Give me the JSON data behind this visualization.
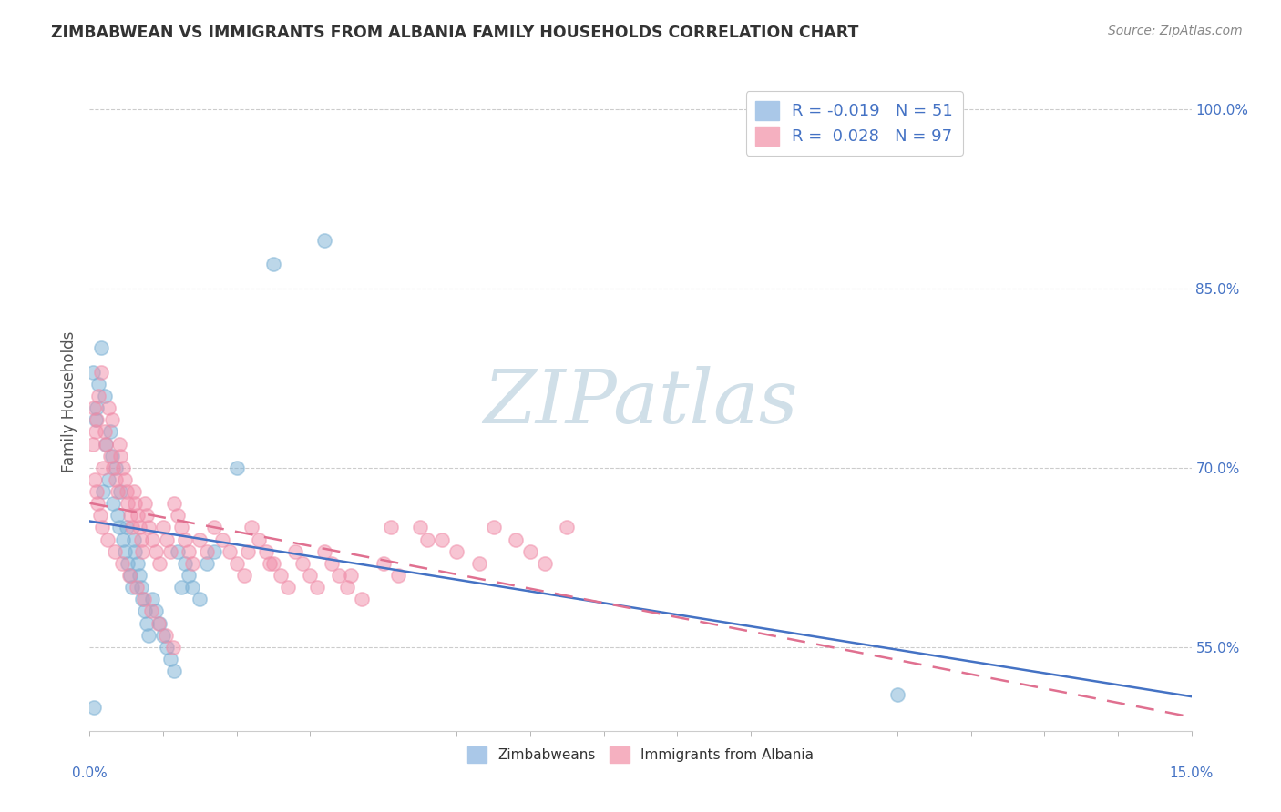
{
  "title": "ZIMBABWEAN VS IMMIGRANTS FROM ALBANIA FAMILY HOUSEHOLDS CORRELATION CHART",
  "source": "Source: ZipAtlas.com",
  "ylabel": "Family Households",
  "xlim": [
    0.0,
    15.0
  ],
  "ylim": [
    48.0,
    103.0
  ],
  "yticks": [
    55.0,
    70.0,
    85.0,
    100.0
  ],
  "series1_color": "#7ab0d4",
  "series1_edge": "#7ab0d4",
  "series2_color": "#f08ca8",
  "series2_edge": "#f08ca8",
  "trendline1_color": "#4472c4",
  "trendline2_color": "#e07090",
  "watermark_color": "#d0dfe8",
  "background_color": "#ffffff",
  "grid_color": "#cccccc",
  "zimbabwe_x": [
    0.05,
    0.08,
    0.1,
    0.12,
    0.15,
    0.18,
    0.2,
    0.22,
    0.25,
    0.28,
    0.3,
    0.32,
    0.35,
    0.38,
    0.4,
    0.42,
    0.45,
    0.48,
    0.5,
    0.52,
    0.55,
    0.58,
    0.6,
    0.62,
    0.65,
    0.68,
    0.7,
    0.72,
    0.75,
    0.78,
    0.8,
    0.85,
    0.9,
    0.95,
    1.0,
    1.05,
    1.1,
    1.15,
    1.2,
    1.25,
    1.3,
    1.35,
    1.4,
    1.5,
    1.6,
    1.7,
    2.0,
    2.5,
    3.2,
    11.0,
    0.06
  ],
  "zimbabwe_y": [
    78.0,
    74.0,
    75.0,
    77.0,
    80.0,
    68.0,
    76.0,
    72.0,
    69.0,
    73.0,
    71.0,
    67.0,
    70.0,
    66.0,
    65.0,
    68.0,
    64.0,
    63.0,
    65.0,
    62.0,
    61.0,
    60.0,
    64.0,
    63.0,
    62.0,
    61.0,
    60.0,
    59.0,
    58.0,
    57.0,
    56.0,
    59.0,
    58.0,
    57.0,
    56.0,
    55.0,
    54.0,
    53.0,
    63.0,
    60.0,
    62.0,
    61.0,
    60.0,
    59.0,
    62.0,
    63.0,
    70.0,
    87.0,
    89.0,
    51.0,
    50.0
  ],
  "albania_x": [
    0.04,
    0.06,
    0.08,
    0.1,
    0.12,
    0.15,
    0.18,
    0.2,
    0.22,
    0.25,
    0.28,
    0.3,
    0.32,
    0.35,
    0.38,
    0.4,
    0.42,
    0.45,
    0.48,
    0.5,
    0.52,
    0.55,
    0.58,
    0.6,
    0.62,
    0.65,
    0.68,
    0.7,
    0.72,
    0.75,
    0.78,
    0.8,
    0.85,
    0.9,
    0.95,
    1.0,
    1.05,
    1.1,
    1.15,
    1.2,
    1.25,
    1.3,
    1.35,
    1.4,
    1.5,
    1.6,
    1.7,
    1.8,
    1.9,
    2.0,
    2.1,
    2.2,
    2.3,
    2.4,
    2.5,
    2.6,
    2.7,
    2.8,
    2.9,
    3.0,
    3.1,
    3.2,
    3.3,
    3.4,
    3.5,
    3.7,
    4.0,
    4.2,
    4.5,
    4.8,
    5.0,
    5.3,
    5.5,
    5.8,
    6.0,
    6.2,
    6.5,
    0.07,
    0.09,
    0.11,
    0.14,
    0.17,
    0.24,
    0.34,
    0.44,
    0.54,
    0.64,
    0.74,
    0.84,
    0.94,
    1.04,
    1.14,
    2.15,
    2.45,
    3.55,
    4.1,
    4.6
  ],
  "albania_y": [
    72.0,
    75.0,
    73.0,
    74.0,
    76.0,
    78.0,
    70.0,
    73.0,
    72.0,
    75.0,
    71.0,
    74.0,
    70.0,
    69.0,
    68.0,
    72.0,
    71.0,
    70.0,
    69.0,
    68.0,
    67.0,
    66.0,
    65.0,
    68.0,
    67.0,
    66.0,
    65.0,
    64.0,
    63.0,
    67.0,
    66.0,
    65.0,
    64.0,
    63.0,
    62.0,
    65.0,
    64.0,
    63.0,
    67.0,
    66.0,
    65.0,
    64.0,
    63.0,
    62.0,
    64.0,
    63.0,
    65.0,
    64.0,
    63.0,
    62.0,
    61.0,
    65.0,
    64.0,
    63.0,
    62.0,
    61.0,
    60.0,
    63.0,
    62.0,
    61.0,
    60.0,
    63.0,
    62.0,
    61.0,
    60.0,
    59.0,
    62.0,
    61.0,
    65.0,
    64.0,
    63.0,
    62.0,
    65.0,
    64.0,
    63.0,
    62.0,
    65.0,
    69.0,
    68.0,
    67.0,
    66.0,
    65.0,
    64.0,
    63.0,
    62.0,
    61.0,
    60.0,
    59.0,
    58.0,
    57.0,
    56.0,
    55.0,
    63.0,
    62.0,
    61.0,
    65.0,
    64.0
  ]
}
